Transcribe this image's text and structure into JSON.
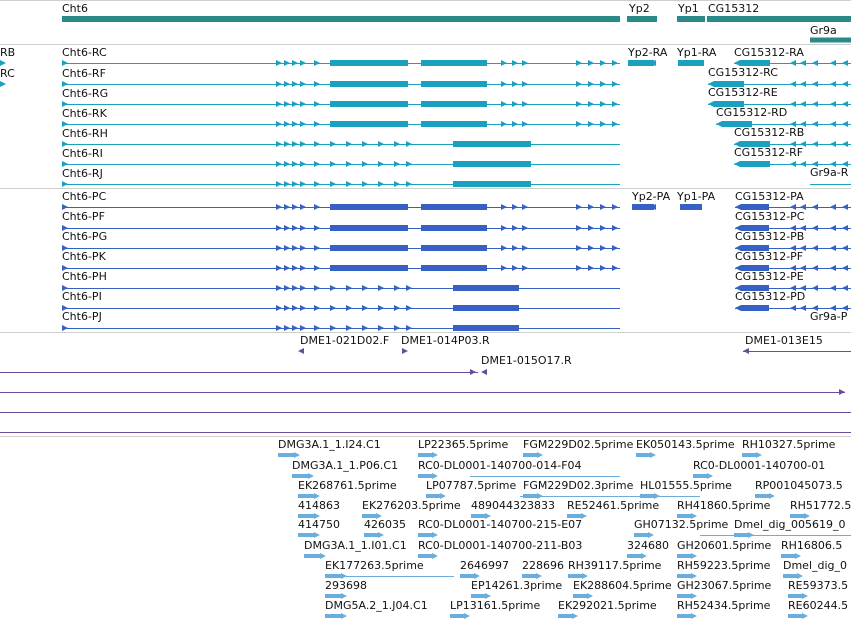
{
  "colors": {
    "gene": "#2a8a8a",
    "transcript": "#1aa1c0",
    "protein": "#3560c4",
    "clone": "#6a4c9c",
    "est": "#6aaee0",
    "separator": "#cfcfcf"
  },
  "genes": {
    "items": [
      {
        "label": "Cht6"
      },
      {
        "label": "Yp2"
      },
      {
        "label": "Yp1"
      },
      {
        "label": "CG15312"
      },
      {
        "label": "Gr9a"
      }
    ]
  },
  "transcripts": {
    "left_partial": [
      "RB",
      "RC"
    ],
    "items": [
      {
        "label": "Cht6-RC"
      },
      {
        "label": "Cht6-RF"
      },
      {
        "label": "Cht6-RG"
      },
      {
        "label": "Cht6-RK"
      },
      {
        "label": "Cht6-RH"
      },
      {
        "label": "Cht6-RI"
      },
      {
        "label": "Cht6-RJ"
      },
      {
        "label": "Yp2-RA"
      },
      {
        "label": "Yp1-RA"
      },
      {
        "label": "CG15312-RA"
      },
      {
        "label": "CG15312-RC"
      },
      {
        "label": "CG15312-RE"
      },
      {
        "label": "CG15312-RD"
      },
      {
        "label": "CG15312-RB"
      },
      {
        "label": "CG15312-RF"
      },
      {
        "label": "Gr9a-R"
      }
    ]
  },
  "proteins": {
    "items": [
      {
        "label": "Cht6-PC"
      },
      {
        "label": "Cht6-PF"
      },
      {
        "label": "Cht6-PG"
      },
      {
        "label": "Cht6-PK"
      },
      {
        "label": "Cht6-PH"
      },
      {
        "label": "Cht6-PI"
      },
      {
        "label": "Cht6-PJ"
      },
      {
        "label": "Yp2-PA"
      },
      {
        "label": "Yp1-PA"
      },
      {
        "label": "CG15312-PA"
      },
      {
        "label": "CG15312-PC"
      },
      {
        "label": "CG15312-PB"
      },
      {
        "label": "CG15312-PF"
      },
      {
        "label": "CG15312-PE"
      },
      {
        "label": "CG15312-PD"
      },
      {
        "label": "Gr9a-P"
      }
    ]
  },
  "clones": {
    "items": [
      {
        "label": "DME1-021D02.F"
      },
      {
        "label": "DME1-014P03.R"
      },
      {
        "label": "DME1-013E15"
      },
      {
        "label": "DME1-015O17.R"
      }
    ]
  },
  "ests": {
    "items": [
      {
        "label": "DMG3A.1_1.I24.C1"
      },
      {
        "label": "LP22365.5prime"
      },
      {
        "label": "FGM229D02.5prime"
      },
      {
        "label": "EK050143.5prime"
      },
      {
        "label": "RH10327.5prime"
      },
      {
        "label": "DMG3A.1_1.P06.C1"
      },
      {
        "label": "RC0-DL0001-140700-014-F04"
      },
      {
        "label": "RC0-DL0001-140700-01"
      },
      {
        "label": "EK268761.5prime"
      },
      {
        "label": "LP07787.5prime"
      },
      {
        "label": "FGM229D02.3prime"
      },
      {
        "label": "HL01555.5prime"
      },
      {
        "label": "RP001045073.5"
      },
      {
        "label": "414863"
      },
      {
        "label": "EK276203.5prime"
      },
      {
        "label": "489044323833"
      },
      {
        "label": "RE52461.5prime"
      },
      {
        "label": "RH41860.5prime"
      },
      {
        "label": "RH51772.5"
      },
      {
        "label": "414750"
      },
      {
        "label": "426035"
      },
      {
        "label": "RC0-DL0001-140700-215-E07"
      },
      {
        "label": "GH07132.5prime"
      },
      {
        "label": "Dmel_dig_005619_0"
      },
      {
        "label": "DMG3A.1_1.I01.C1"
      },
      {
        "label": "RC0-DL0001-140700-211-B03"
      },
      {
        "label": "324680"
      },
      {
        "label": "GH20601.5prime"
      },
      {
        "label": "RH16806.5"
      },
      {
        "label": "EK177263.5prime"
      },
      {
        "label": "2646997"
      },
      {
        "label": "228696"
      },
      {
        "label": "RH39117.5prime"
      },
      {
        "label": "RH59223.5prime"
      },
      {
        "label": "Dmel_dig_0"
      },
      {
        "label": "293698"
      },
      {
        "label": "EP14261.3prime"
      },
      {
        "label": "EK288604.5prime"
      },
      {
        "label": "GH23067.5prime"
      },
      {
        "label": "RE59373.5"
      },
      {
        "label": "DMG5A.2_1.J04.C1"
      },
      {
        "label": "LP13161.5prime"
      },
      {
        "label": "EK292021.5prime"
      },
      {
        "label": "RH52434.5prime"
      },
      {
        "label": "RE60244.5"
      }
    ]
  }
}
